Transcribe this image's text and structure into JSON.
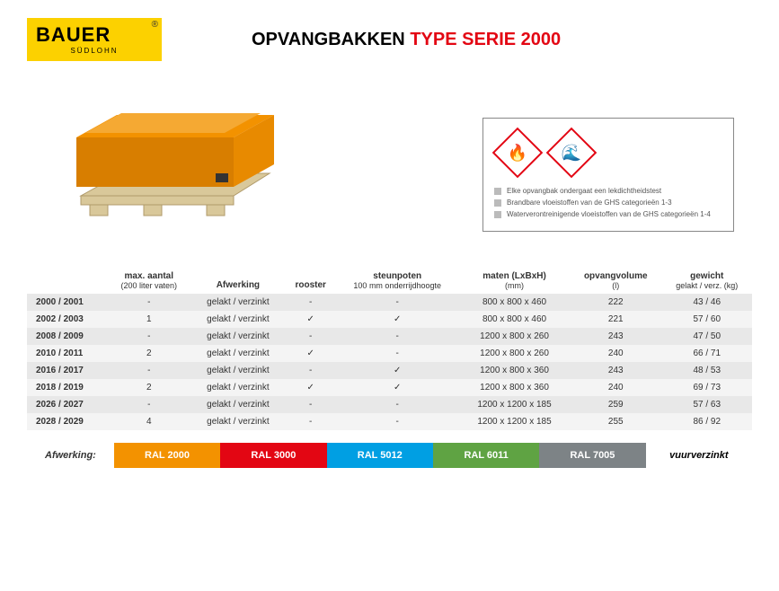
{
  "logo": {
    "brand": "BAUER",
    "sub": "SÜDLOHN",
    "reg": "®",
    "bg_color": "#fcd100"
  },
  "title": {
    "part1": "OPVANGBAKKEN ",
    "part2": "TYPE SERIE 2000"
  },
  "info": {
    "line1": "Elke opvangbak ondergaat een lekdichtheidstest",
    "line2": "Brandbare vloeistoffen van de GHS categorieën 1-3",
    "line3": "Waterverontreinigende vloeistoffen van de GHS categorieën 1-4"
  },
  "ghs": {
    "flame": "🔥",
    "env": "🌊"
  },
  "table": {
    "headers": {
      "col1": "",
      "col2": "max. aantal",
      "col2_sub": "(200 liter vaten)",
      "col3": "Afwerking",
      "col4": "rooster",
      "col5": "steunpoten",
      "col5_sub": "100 mm onderrijdhoogte",
      "col6": "maten (LxBxH)",
      "col6_sub": "(mm)",
      "col7": "opvangvolume",
      "col7_sub": "(l)",
      "col8": "gewicht",
      "col8_sub": "gelakt / verz. (kg)"
    },
    "rows": [
      {
        "id": "2000 / 2001",
        "max": "-",
        "afw": "gelakt / verzinkt",
        "roost": "-",
        "steun": "-",
        "maten": "800 x   800 x 460",
        "vol": "222",
        "gew": "43 / 46"
      },
      {
        "id": "2002 / 2003",
        "max": "1",
        "afw": "gelakt / verzinkt",
        "roost": "✓",
        "steun": "✓",
        "maten": "800 x   800 x 460",
        "vol": "221",
        "gew": "57 / 60"
      },
      {
        "id": "2008 / 2009",
        "max": "-",
        "afw": "gelakt / verzinkt",
        "roost": "-",
        "steun": "-",
        "maten": "1200 x   800 x 260",
        "vol": "243",
        "gew": "47 / 50"
      },
      {
        "id": "2010 / 2011",
        "max": "2",
        "afw": "gelakt / verzinkt",
        "roost": "✓",
        "steun": "-",
        "maten": "1200 x   800 x 260",
        "vol": "240",
        "gew": "66 / 71"
      },
      {
        "id": "2016 / 2017",
        "max": "-",
        "afw": "gelakt / verzinkt",
        "roost": "-",
        "steun": "✓",
        "maten": "1200 x   800 x 360",
        "vol": "243",
        "gew": "48 / 53"
      },
      {
        "id": "2018 / 2019",
        "max": "2",
        "afw": "gelakt / verzinkt",
        "roost": "✓",
        "steun": "✓",
        "maten": "1200 x   800 x 360",
        "vol": "240",
        "gew": "69 / 73"
      },
      {
        "id": "2026 / 2027",
        "max": "-",
        "afw": "gelakt / verzinkt",
        "roost": "-",
        "steun": "-",
        "maten": "1200 x 1200 x 185",
        "vol": "259",
        "gew": "57 / 63"
      },
      {
        "id": "2028 / 2029",
        "max": "4",
        "afw": "gelakt / verzinkt",
        "roost": "-",
        "steun": "-",
        "maten": "1200 x 1200 x 185",
        "vol": "255",
        "gew": "86 / 92"
      }
    ]
  },
  "finish": {
    "label": "Afwerking:",
    "items": [
      {
        "label": "RAL 2000",
        "color": "#f39200"
      },
      {
        "label": "RAL 3000",
        "color": "#e30613"
      },
      {
        "label": "RAL 5012",
        "color": "#009fe3"
      },
      {
        "label": "RAL 6011",
        "color": "#5fa343"
      },
      {
        "label": "RAL 7005",
        "color": "#7d8386"
      },
      {
        "label": "vuurverzinkt",
        "color": "#ffffff"
      }
    ]
  }
}
